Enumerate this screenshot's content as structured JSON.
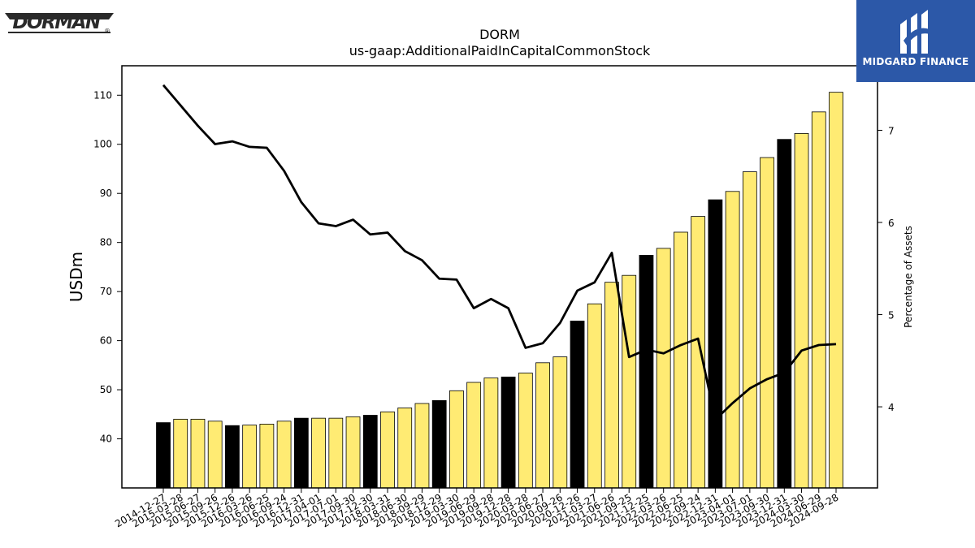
{
  "brand": {
    "name": "DORMAN",
    "reg_mark": "®"
  },
  "partner": {
    "name": "MIDGARD FINANCE"
  },
  "colors": {
    "bar_default": "#ffeb73",
    "bar_highlight": "#000000",
    "line": "#000000"
  },
  "chart_data": {
    "type": "bar",
    "title": "DORM",
    "subtitle": "us-gaap:AdditionalPaidInCapitalCommonStock",
    "ylabel": "USDm",
    "y2label": "Percentage of Assets",
    "ylim": [
      30,
      116
    ],
    "y2lim": [
      3.12,
      7.7
    ],
    "yticks": [
      40,
      50,
      60,
      70,
      80,
      90,
      100,
      110
    ],
    "y2ticks": [
      4,
      5,
      6,
      7
    ],
    "grid": false,
    "categories": [
      "2014-12-27",
      "2015-03-28",
      "2015-06-27",
      "2015-09-26",
      "2015-12-26",
      "2016-03-26",
      "2016-06-25",
      "2016-09-24",
      "2016-12-31",
      "2017-04-01",
      "2017-07-01",
      "2017-09-30",
      "2017-12-30",
      "2018-03-31",
      "2018-06-30",
      "2018-09-29",
      "2018-12-29",
      "2019-03-30",
      "2019-06-29",
      "2019-09-28",
      "2019-12-28",
      "2020-03-28",
      "2020-06-27",
      "2020-09-26",
      "2020-12-26",
      "2021-03-27",
      "2021-06-26",
      "2021-09-25",
      "2021-12-25",
      "2022-03-26",
      "2022-06-25",
      "2022-09-24",
      "2022-12-31",
      "2023-04-01",
      "2023-07-01",
      "2023-09-30",
      "2023-12-31",
      "2024-03-30",
      "2024-06-29",
      "2024-09-28"
    ],
    "highlight": [
      true,
      false,
      false,
      false,
      true,
      false,
      false,
      false,
      true,
      false,
      false,
      false,
      true,
      false,
      false,
      false,
      true,
      false,
      false,
      false,
      true,
      false,
      false,
      false,
      true,
      false,
      false,
      false,
      true,
      false,
      false,
      false,
      true,
      false,
      false,
      false,
      true,
      false,
      false,
      false
    ],
    "series": [
      {
        "kind": "bar",
        "axis": "left",
        "values": [
          43.3,
          44.0,
          44.0,
          43.6,
          42.7,
          42.8,
          43.0,
          43.6,
          44.2,
          44.2,
          44.2,
          44.5,
          44.8,
          45.5,
          46.3,
          47.2,
          47.8,
          49.8,
          51.5,
          52.4,
          52.6,
          53.4,
          55.5,
          56.7,
          64.0,
          67.5,
          71.9,
          73.3,
          77.4,
          78.8,
          82.1,
          85.3,
          88.7,
          90.4,
          94.4,
          97.3,
          101.0,
          102.2,
          106.6,
          110.6
        ]
      },
      {
        "kind": "line",
        "axis": "right",
        "values": [
          7.49,
          7.27,
          7.05,
          6.85,
          6.88,
          6.82,
          6.81,
          6.56,
          6.22,
          5.99,
          5.96,
          6.03,
          5.87,
          5.89,
          5.69,
          5.59,
          5.39,
          5.38,
          5.07,
          5.17,
          5.07,
          4.64,
          4.69,
          4.91,
          5.26,
          5.35,
          5.67,
          4.54,
          4.62,
          4.58,
          4.67,
          4.74,
          3.86,
          4.04,
          4.2,
          4.3,
          4.37,
          4.61,
          4.67,
          4.68
        ]
      }
    ]
  }
}
